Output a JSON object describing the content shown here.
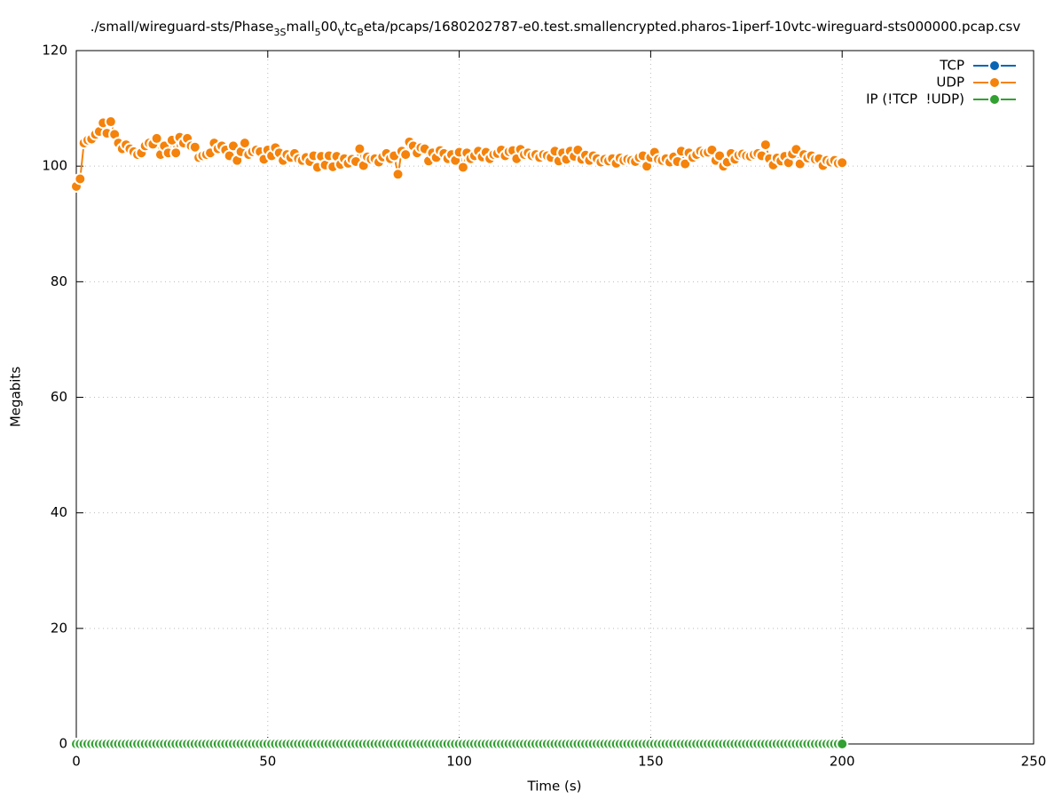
{
  "chart_data": {
    "type": "line",
    "title": [
      {
        "text": "./small/wireguard-sts/Phase"
      },
      {
        "text": "3S",
        "sub": true
      },
      {
        "text": "mall"
      },
      {
        "text": "5",
        "sub": true
      },
      {
        "text": "00"
      },
      {
        "text": "V",
        "sub": true
      },
      {
        "text": "tc"
      },
      {
        "text": "B",
        "sub": true
      },
      {
        "text": "eta/pcaps/1680202787-e0.test.smallencrypted.pharos-1iperf-10vtc-wireguard-sts000000.pcap.csv"
      }
    ],
    "xlabel": "Time (s)",
    "ylabel": "Megabits",
    "xlim": [
      0,
      250
    ],
    "xticks": [
      0,
      50,
      100,
      150,
      200,
      250
    ],
    "ylim": [
      0,
      120
    ],
    "yticks": [
      0,
      20,
      40,
      60,
      80,
      100,
      120
    ],
    "grid": true,
    "legend": "top-right",
    "x": [
      0,
      1,
      2,
      3,
      4,
      5,
      6,
      7,
      8,
      9,
      10,
      11,
      12,
      13,
      14,
      15,
      16,
      17,
      18,
      19,
      20,
      21,
      22,
      23,
      24,
      25,
      26,
      27,
      28,
      29,
      30,
      31,
      32,
      33,
      34,
      35,
      36,
      37,
      38,
      39,
      40,
      41,
      42,
      43,
      44,
      45,
      46,
      47,
      48,
      49,
      50,
      51,
      52,
      53,
      54,
      55,
      56,
      57,
      58,
      59,
      60,
      61,
      62,
      63,
      64,
      65,
      66,
      67,
      68,
      69,
      70,
      71,
      72,
      73,
      74,
      75,
      76,
      77,
      78,
      79,
      80,
      81,
      82,
      83,
      84,
      85,
      86,
      87,
      88,
      89,
      90,
      91,
      92,
      93,
      94,
      95,
      96,
      97,
      98,
      99,
      100,
      101,
      102,
      103,
      104,
      105,
      106,
      107,
      108,
      109,
      110,
      111,
      112,
      113,
      114,
      115,
      116,
      117,
      118,
      119,
      120,
      121,
      122,
      123,
      124,
      125,
      126,
      127,
      128,
      129,
      130,
      131,
      132,
      133,
      134,
      135,
      136,
      137,
      138,
      139,
      140,
      141,
      142,
      143,
      144,
      145,
      146,
      147,
      148,
      149,
      150,
      151,
      152,
      153,
      154,
      155,
      156,
      157,
      158,
      159,
      160,
      161,
      162,
      163,
      164,
      165,
      166,
      167,
      168,
      169,
      170,
      171,
      172,
      173,
      174,
      175,
      176,
      177,
      178,
      179,
      180,
      181,
      182,
      183,
      184,
      185,
      186,
      187,
      188,
      189,
      190,
      191,
      192,
      193,
      194,
      195,
      196,
      197,
      198,
      199,
      200
    ],
    "series": [
      {
        "name": "TCP",
        "color": "#0a64b4",
        "x": [],
        "values": []
      },
      {
        "name": "UDP",
        "color": "#f5820a",
        "values": [
          96.5,
          97.8,
          104,
          104.5,
          104.7,
          105.5,
          106,
          107.5,
          105.7,
          107.7,
          105.5,
          104,
          103,
          103.7,
          103,
          102.5,
          102,
          102.3,
          103.5,
          104,
          103.8,
          104.8,
          102,
          103.5,
          102.3,
          104.5,
          102.3,
          105,
          104,
          104.8,
          103.5,
          103.3,
          101.5,
          101.8,
          102,
          102.3,
          104,
          103,
          103.5,
          102.8,
          101.8,
          103.5,
          101,
          102.5,
          104,
          102,
          102.5,
          102.8,
          102.5,
          101.2,
          102.8,
          101.8,
          103.2,
          102.3,
          101,
          102,
          101.5,
          102.2,
          101.3,
          101,
          101.5,
          100.8,
          101.8,
          99.8,
          101.7,
          100.2,
          101.8,
          99.9,
          101.7,
          100.3,
          101.3,
          100.5,
          101.2,
          100.8,
          103,
          100.1,
          101.6,
          101.2,
          101.3,
          100.7,
          101.6,
          102.2,
          101.3,
          101.8,
          98.6,
          102.6,
          102,
          104.2,
          103.5,
          102.3,
          103.2,
          103,
          100.9,
          102.3,
          101.5,
          102.7,
          102.2,
          101.3,
          102,
          101,
          102.4,
          99.8,
          102.3,
          101.3,
          101.8,
          102.6,
          101.6,
          102.4,
          101.3,
          102,
          102.2,
          102.8,
          101.8,
          102.5,
          102.7,
          101.3,
          102.9,
          102,
          102.3,
          101.8,
          102,
          101.5,
          102,
          101.8,
          101.5,
          102.6,
          100.9,
          102.3,
          101.2,
          102.6,
          101.7,
          102.8,
          101.2,
          101.9,
          101,
          101.8,
          101.3,
          100.7,
          101.2,
          100.9,
          101.3,
          100.5,
          101.4,
          101,
          101.2,
          101,
          100.8,
          101.5,
          101.8,
          100,
          101.5,
          102.4,
          101.2,
          101,
          101.3,
          100.7,
          101.6,
          100.8,
          102.6,
          100.4,
          102.3,
          101.5,
          102,
          102.6,
          102.3,
          102.4,
          102.8,
          101,
          101.8,
          100,
          100.7,
          102.2,
          101.2,
          101.9,
          102.1,
          101.8,
          101.7,
          102,
          102.2,
          101.8,
          103.7,
          101.3,
          100.2,
          101.4,
          100.9,
          101.7,
          100.6,
          102.1,
          102.9,
          100.4,
          102,
          101.4,
          101.8,
          101.2,
          101.3,
          100.1,
          101,
          100.7,
          101,
          100.5,
          100.6
        ]
      },
      {
        "name": "IP (!TCP  !UDP)",
        "color": "#32a032",
        "values": [
          0,
          0,
          0,
          0,
          0,
          0,
          0,
          0,
          0,
          0,
          0,
          0,
          0,
          0,
          0,
          0,
          0,
          0,
          0,
          0,
          0,
          0,
          0,
          0,
          0,
          0,
          0,
          0,
          0,
          0,
          0,
          0,
          0,
          0,
          0,
          0,
          0,
          0,
          0,
          0,
          0,
          0,
          0,
          0,
          0,
          0,
          0,
          0,
          0,
          0,
          0,
          0,
          0,
          0,
          0,
          0,
          0,
          0,
          0,
          0,
          0,
          0,
          0,
          0,
          0,
          0,
          0,
          0,
          0,
          0,
          0,
          0,
          0,
          0,
          0,
          0,
          0,
          0,
          0,
          0,
          0,
          0,
          0,
          0,
          0,
          0,
          0,
          0,
          0,
          0,
          0,
          0,
          0,
          0,
          0,
          0,
          0,
          0,
          0,
          0,
          0,
          0,
          0,
          0,
          0,
          0,
          0,
          0,
          0,
          0,
          0,
          0,
          0,
          0,
          0,
          0,
          0,
          0,
          0,
          0,
          0,
          0,
          0,
          0,
          0,
          0,
          0,
          0,
          0,
          0,
          0,
          0,
          0,
          0,
          0,
          0,
          0,
          0,
          0,
          0,
          0,
          0,
          0,
          0,
          0,
          0,
          0,
          0,
          0,
          0,
          0,
          0,
          0,
          0,
          0,
          0,
          0,
          0,
          0,
          0,
          0,
          0,
          0,
          0,
          0,
          0,
          0,
          0,
          0,
          0,
          0,
          0,
          0,
          0,
          0,
          0,
          0,
          0,
          0,
          0,
          0,
          0,
          0,
          0,
          0,
          0,
          0,
          0,
          0,
          0,
          0,
          0,
          0,
          0,
          0,
          0,
          0,
          0,
          0,
          0,
          0
        ]
      }
    ]
  }
}
